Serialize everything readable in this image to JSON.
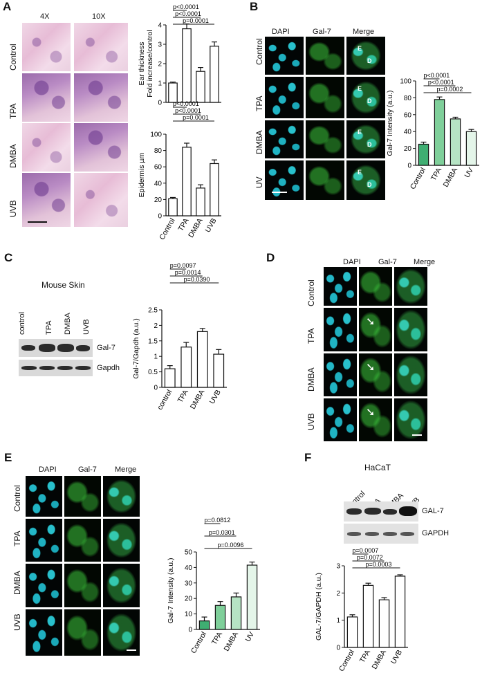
{
  "panel_a": {
    "letter": "A",
    "col_labels": [
      "4X",
      "10X"
    ],
    "row_labels": [
      "Control",
      "TPA",
      "DMBA",
      "UVB"
    ]
  },
  "panel_b": {
    "letter": "B",
    "col_labels": [
      "DAPI",
      "Gal-7",
      "Merge"
    ],
    "row_labels": [
      "Control",
      "TPA",
      "DMBA",
      "UV"
    ],
    "region_labels": [
      "E",
      "D"
    ]
  },
  "panel_c": {
    "letter": "C",
    "blot_title": "Mouse Skin",
    "lane_labels": [
      "control",
      "TPA",
      "DMBA",
      "UVB"
    ],
    "band_labels": [
      "Gal-7",
      "Gapdh"
    ]
  },
  "panel_d": {
    "letter": "D",
    "col_labels": [
      "DAPI",
      "Gal-7",
      "Merge"
    ],
    "row_labels": [
      "Control",
      "TPA",
      "DMBA",
      "UVB"
    ]
  },
  "panel_e": {
    "letter": "E",
    "col_labels": [
      "DAPI",
      "Gal-7",
      "Merge"
    ],
    "row_labels": [
      "Control",
      "TPA",
      "DMBA",
      "UVB"
    ]
  },
  "panel_f": {
    "letter": "F",
    "blot_title": "HaCaT",
    "lane_labels": [
      "Control",
      "TPA",
      "DMBA",
      "UVB"
    ],
    "band_labels": [
      "GAL-7",
      "GAPDH"
    ]
  },
  "chart_data": [
    {
      "id": "a_ear",
      "type": "bar",
      "ylabel": "Ear thickness\nFold increase/control",
      "categories": [
        "Control",
        "TPA",
        "DMBA",
        "UVB"
      ],
      "values": [
        1.0,
        3.8,
        1.6,
        2.9
      ],
      "errors": [
        0.05,
        0.25,
        0.2,
        0.22
      ],
      "ylim": [
        0,
        4
      ],
      "yticks": [
        0,
        1,
        2,
        3,
        4
      ],
      "show_xlabels": false,
      "fill": "#ffffff",
      "pvalues": [
        "p<0.0001",
        "p<0.0001",
        "p=0.0001"
      ]
    },
    {
      "id": "a_epi",
      "type": "bar",
      "ylabel": "Epidermis µm",
      "categories": [
        "Control",
        "TPA",
        "DMBA",
        "UVB"
      ],
      "values": [
        21,
        84,
        34,
        64
      ],
      "errors": [
        1.5,
        5,
        4,
        4.5
      ],
      "ylim": [
        0,
        100
      ],
      "yticks": [
        0,
        20,
        40,
        60,
        80,
        100
      ],
      "show_xlabels": true,
      "fill": "#ffffff",
      "pvalues": [
        "p<0.0001",
        "p<0.0001",
        "p=0.0001"
      ]
    },
    {
      "id": "b_gal7",
      "type": "bar",
      "ylabel": "Gal-7 Intensity (a.u.)",
      "categories": [
        "Control",
        "TPA",
        "DMBA",
        "UV"
      ],
      "values": [
        25,
        78,
        55,
        40
      ],
      "errors": [
        2.5,
        3,
        2,
        2.5
      ],
      "ylim": [
        0,
        100
      ],
      "yticks": [
        0,
        20,
        40,
        60,
        80,
        100
      ],
      "show_xlabels": true,
      "fills": [
        "#3fae72",
        "#7fcf9a",
        "#b6e4c4",
        "#e4f5e9"
      ],
      "pvalues": [
        "p<0.0001",
        "p<0.0001",
        "p=0.0002"
      ]
    },
    {
      "id": "c_ratio",
      "type": "bar",
      "ylabel": "Gal-7/Gapdh (a.u.)",
      "categories": [
        "control",
        "TPA",
        "DMBA",
        "UVB"
      ],
      "values": [
        0.6,
        1.3,
        1.8,
        1.07
      ],
      "errors": [
        0.1,
        0.15,
        0.1,
        0.15
      ],
      "ylim": [
        0,
        2.5
      ],
      "yticks": [
        0.0,
        0.5,
        1.0,
        1.5,
        2.0,
        2.5
      ],
      "show_xlabels": true,
      "fill": "#ffffff",
      "pvalues": [
        "p=0.0097",
        "p=0.0014",
        "p=0.0390"
      ]
    },
    {
      "id": "e_gal7",
      "type": "bar",
      "ylabel": "Gal-7 Intensity (a.u.)",
      "categories": [
        "Control",
        "TPA",
        "DMBA",
        "UV"
      ],
      "values": [
        5.5,
        15.5,
        21,
        41.5
      ],
      "errors": [
        2.5,
        2.5,
        2.5,
        2
      ],
      "ylim": [
        0,
        50
      ],
      "yticks": [
        0,
        10,
        20,
        30,
        40,
        50
      ],
      "show_xlabels": true,
      "fills": [
        "#3fae72",
        "#7fcf9a",
        "#b6e4c4",
        "#e4f5e9"
      ],
      "pvalues": [
        "p=0.0812",
        "p=0.0301",
        "p=0.0096"
      ]
    },
    {
      "id": "f_ratio",
      "type": "bar",
      "ylabel": "GAL-7/GAPDH (a.u.)",
      "categories": [
        "Control",
        "TPA",
        "DMBA",
        "UVB"
      ],
      "values": [
        1.12,
        2.28,
        1.75,
        2.62
      ],
      "errors": [
        0.08,
        0.08,
        0.08,
        0.05
      ],
      "ylim": [
        0,
        3
      ],
      "yticks": [
        0,
        1,
        2,
        3
      ],
      "show_xlabels": true,
      "fill": "#ffffff",
      "pvalues": [
        "p=0.0007",
        "p=0.0072",
        "p=0.0003"
      ]
    }
  ]
}
